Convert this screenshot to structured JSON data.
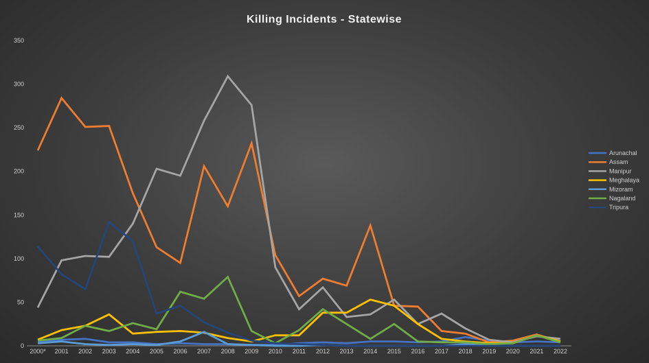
{
  "chart_data": {
    "type": "line",
    "title": "Killing Incidents - Statewise",
    "xlabel": "",
    "ylabel": "",
    "ylim": [
      0,
      350
    ],
    "yticks": [
      0,
      50,
      100,
      150,
      200,
      250,
      300,
      350
    ],
    "grid": false,
    "legend_position": "right",
    "categories": [
      "2000*",
      "2001",
      "2002",
      "2003",
      "2004",
      "2005",
      "2006",
      "2007",
      "2008",
      "2009",
      "2010",
      "2011",
      "2012",
      "2013",
      "2014",
      "2015",
      "2016",
      "2017",
      "2018",
      "2019",
      "2020",
      "2021",
      "2022"
    ],
    "series": [
      {
        "name": "Arunachal",
        "color": "#4472c4",
        "values": [
          5,
          7,
          8,
          4,
          4,
          2,
          3,
          2,
          2,
          1,
          1,
          3,
          4,
          3,
          5,
          5,
          4,
          5,
          10,
          6,
          4,
          5,
          4
        ]
      },
      {
        "name": "Assam",
        "color": "#ed7d31",
        "values": [
          224,
          284,
          251,
          252,
          175,
          113,
          95,
          206,
          160,
          232,
          104,
          57,
          77,
          69,
          138,
          46,
          45,
          17,
          14,
          4,
          6,
          13,
          5
        ]
      },
      {
        "name": "Manipur",
        "color": "#a5a5a5",
        "values": [
          44,
          98,
          103,
          102,
          140,
          203,
          195,
          258,
          309,
          276,
          90,
          42,
          67,
          33,
          36,
          53,
          25,
          37,
          20,
          7,
          4,
          11,
          8
        ]
      },
      {
        "name": "Meghalaya",
        "color": "#ffc000",
        "values": [
          7,
          18,
          23,
          36,
          14,
          16,
          17,
          15,
          9,
          5,
          12,
          12,
          38,
          38,
          53,
          46,
          25,
          8,
          5,
          3,
          3,
          12,
          5
        ]
      },
      {
        "name": "Mizoram",
        "color": "#5b9bd5",
        "values": [
          3,
          5,
          2,
          1,
          2,
          1,
          5,
          16,
          2,
          1,
          0,
          0,
          1,
          0,
          0,
          0,
          0,
          0,
          2,
          0,
          0,
          0,
          0
        ]
      },
      {
        "name": "Nagaland",
        "color": "#70ad47",
        "values": [
          6,
          9,
          23,
          17,
          26,
          19,
          62,
          54,
          79,
          17,
          3,
          18,
          42,
          25,
          8,
          25,
          5,
          4,
          4,
          2,
          3,
          12,
          4
        ]
      },
      {
        "name": "Tripura",
        "color": "#264478",
        "values": [
          114,
          82,
          65,
          142,
          120,
          37,
          46,
          27,
          15,
          6,
          3,
          2,
          1,
          0,
          0,
          0,
          0,
          0,
          0,
          0,
          0,
          0,
          0
        ]
      }
    ]
  }
}
